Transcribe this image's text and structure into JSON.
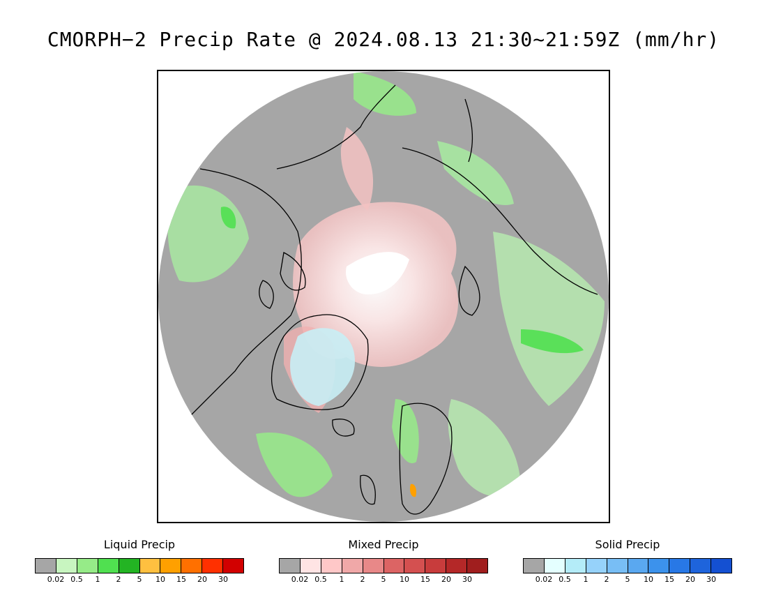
{
  "title": "CMORPH−2 Precip Rate @ 2024.08.13 21:30~21:59Z (mm/hr)",
  "map": {
    "projection": "north polar stereographic",
    "colors": {
      "no_precip": "#a6a6a6",
      "coastline": "#000000",
      "frame": "#000000",
      "outside_disk": "#ffffff"
    }
  },
  "legends": [
    {
      "id": "liquid",
      "title": "Liquid Precip",
      "ticks": [
        "0.02",
        "0.5",
        "1",
        "2",
        "5",
        "10",
        "15",
        "20",
        "30"
      ],
      "colors": [
        "#a6a6a6",
        "#c8f5c0",
        "#96eb88",
        "#50e050",
        "#23b423",
        "#ffc040",
        "#ffa000",
        "#ff7000",
        "#ff3000",
        "#d20000"
      ]
    },
    {
      "id": "mixed",
      "title": "Mixed Precip",
      "ticks": [
        "0.02",
        "0.5",
        "1",
        "2",
        "5",
        "10",
        "15",
        "20",
        "30"
      ],
      "colors": [
        "#a6a6a6",
        "#ffe4e4",
        "#ffc8c8",
        "#f0a8a8",
        "#e88888",
        "#dc6464",
        "#d45050",
        "#c83c3c",
        "#b42828",
        "#a01e1e"
      ]
    },
    {
      "id": "solid",
      "title": "Solid Precip",
      "ticks": [
        "0.02",
        "0.5",
        "1",
        "2",
        "5",
        "10",
        "15",
        "20",
        "30"
      ],
      "colors": [
        "#a6a6a6",
        "#e4ffff",
        "#b4ecf8",
        "#96d2fa",
        "#78bef5",
        "#5aa8f0",
        "#3c92ec",
        "#2878e6",
        "#1e64dc",
        "#1450d2"
      ]
    }
  ]
}
